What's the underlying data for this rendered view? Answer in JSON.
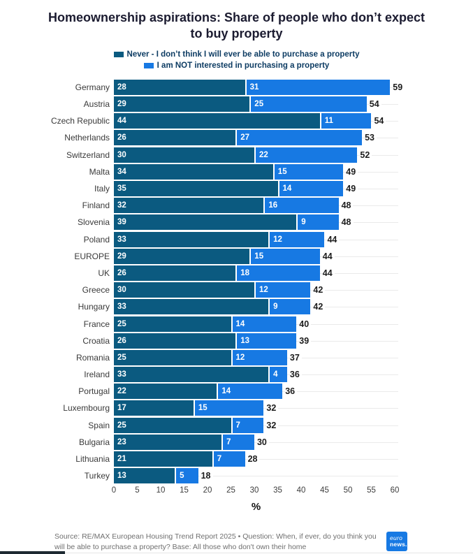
{
  "title": "Homeownership aspirations: Share of people who don’t expect to buy property",
  "legend": [
    {
      "label": "Never - I don’t think I will ever be able to purchase a property",
      "color": "#0b5a80"
    },
    {
      "label": "I am NOT interested in purchasing a property",
      "color": "#1779e3"
    }
  ],
  "chart_data": {
    "type": "bar",
    "orientation": "horizontal",
    "stacked": true,
    "title": "Homeownership aspirations: Share of people who don’t expect to buy property",
    "xlabel": "%",
    "xlim": [
      0,
      60
    ],
    "xticks": [
      0,
      5,
      10,
      15,
      20,
      25,
      30,
      35,
      40,
      45,
      50,
      55,
      60
    ],
    "grid": "horizontal row lines, light gray",
    "legend_position": "top center",
    "categories": [
      "Germany",
      "Austria",
      "Czech Republic",
      "Netherlands",
      "Switzerland",
      "Malta",
      "Italy",
      "Finland",
      "Slovenia",
      "Poland",
      "EUROPE",
      "UK",
      "Greece",
      "Hungary",
      "France",
      "Croatia",
      "Romania",
      "Ireland",
      "Portugal",
      "Luxembourg",
      "Spain",
      "Bulgaria",
      "Lithuania",
      "Turkey"
    ],
    "series": [
      {
        "name": "Never - I don’t think I will ever be able to purchase a property",
        "color": "#0b5a80",
        "values": [
          28,
          29,
          44,
          26,
          30,
          34,
          35,
          32,
          39,
          33,
          29,
          26,
          30,
          33,
          25,
          26,
          25,
          33,
          22,
          17,
          25,
          23,
          21,
          13
        ]
      },
      {
        "name": "I am NOT interested in purchasing a property",
        "color": "#1779e3",
        "values": [
          31,
          25,
          11,
          27,
          22,
          15,
          14,
          16,
          9,
          12,
          15,
          18,
          12,
          9,
          14,
          13,
          12,
          4,
          14,
          15,
          7,
          7,
          7,
          5
        ]
      }
    ],
    "totals": [
      59,
      54,
      54,
      53,
      52,
      49,
      49,
      48,
      48,
      44,
      44,
      44,
      42,
      42,
      40,
      39,
      37,
      36,
      36,
      32,
      32,
      30,
      28,
      18
    ]
  },
  "footer": {
    "source_text": "Source: RE/MAX European Housing Trend Report 2025 • Question: When, if ever, do you think you will be able to purchase a property? Base: All those who don't own their home",
    "logo": {
      "line1": "euro",
      "line2": "news.",
      "color": "#1779e3"
    }
  }
}
